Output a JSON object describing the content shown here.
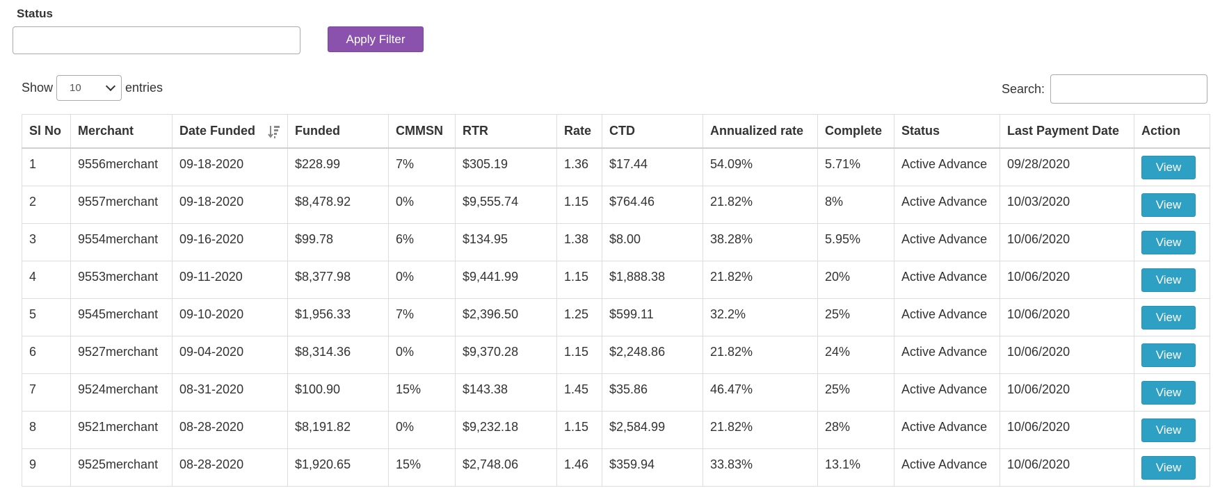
{
  "filter": {
    "status_label": "Status",
    "status_value": "",
    "apply_label": "Apply Filter"
  },
  "length": {
    "show_label": "Show",
    "selected": "10",
    "entries_label": "entries"
  },
  "search": {
    "label": "Search:",
    "value": ""
  },
  "table": {
    "columns": [
      "Sl No",
      "Merchant",
      "Date Funded",
      "Funded",
      "CMMSN",
      "RTR",
      "Rate",
      "CTD",
      "Annualized rate",
      "Complete",
      "Status",
      "Last Payment Date",
      "Action"
    ],
    "sorted_column": "Date Funded",
    "sort_direction": "descending",
    "rows": [
      {
        "sl": "1",
        "merchant": "9556merchant",
        "date": "09-18-2020",
        "funded": "$228.99",
        "cmmsn": "7%",
        "rtr": "$305.19",
        "rate": "1.36",
        "ctd": "$17.44",
        "annualized": "54.09%",
        "complete": "5.71%",
        "status": "Active Advance",
        "last_payment": "09/28/2020",
        "action": "View"
      },
      {
        "sl": "2",
        "merchant": "9557merchant",
        "date": "09-18-2020",
        "funded": "$8,478.92",
        "cmmsn": "0%",
        "rtr": "$9,555.74",
        "rate": "1.15",
        "ctd": "$764.46",
        "annualized": "21.82%",
        "complete": "8%",
        "status": "Active Advance",
        "last_payment": "10/03/2020",
        "action": "View"
      },
      {
        "sl": "3",
        "merchant": "9554merchant",
        "date": "09-16-2020",
        "funded": "$99.78",
        "cmmsn": "6%",
        "rtr": "$134.95",
        "rate": "1.38",
        "ctd": "$8.00",
        "annualized": "38.28%",
        "complete": "5.95%",
        "status": "Active Advance",
        "last_payment": "10/06/2020",
        "action": "View"
      },
      {
        "sl": "4",
        "merchant": "9553merchant",
        "date": "09-11-2020",
        "funded": "$8,377.98",
        "cmmsn": "0%",
        "rtr": "$9,441.99",
        "rate": "1.15",
        "ctd": "$1,888.38",
        "annualized": "21.82%",
        "complete": "20%",
        "status": "Active Advance",
        "last_payment": "10/06/2020",
        "action": "View"
      },
      {
        "sl": "5",
        "merchant": "9545merchant",
        "date": "09-10-2020",
        "funded": "$1,956.33",
        "cmmsn": "7%",
        "rtr": "$2,396.50",
        "rate": "1.25",
        "ctd": "$599.11",
        "annualized": "32.2%",
        "complete": "25%",
        "status": "Active Advance",
        "last_payment": "10/06/2020",
        "action": "View"
      },
      {
        "sl": "6",
        "merchant": "9527merchant",
        "date": "09-04-2020",
        "funded": "$8,314.36",
        "cmmsn": "0%",
        "rtr": "$9,370.28",
        "rate": "1.15",
        "ctd": "$2,248.86",
        "annualized": "21.82%",
        "complete": "24%",
        "status": "Active Advance",
        "last_payment": "10/06/2020",
        "action": "View"
      },
      {
        "sl": "7",
        "merchant": "9524merchant",
        "date": "08-31-2020",
        "funded": "$100.90",
        "cmmsn": "15%",
        "rtr": "$143.38",
        "rate": "1.45",
        "ctd": "$35.86",
        "annualized": "46.47%",
        "complete": "25%",
        "status": "Active Advance",
        "last_payment": "10/06/2020",
        "action": "View"
      },
      {
        "sl": "8",
        "merchant": "9521merchant",
        "date": "08-28-2020",
        "funded": "$8,191.82",
        "cmmsn": "0%",
        "rtr": "$9,232.18",
        "rate": "1.15",
        "ctd": "$2,584.99",
        "annualized": "21.82%",
        "complete": "28%",
        "status": "Active Advance",
        "last_payment": "10/06/2020",
        "action": "View"
      },
      {
        "sl": "9",
        "merchant": "9525merchant",
        "date": "08-28-2020",
        "funded": "$1,920.65",
        "cmmsn": "15%",
        "rtr": "$2,748.06",
        "rate": "1.46",
        "ctd": "$359.94",
        "annualized": "33.83%",
        "complete": "13.1%",
        "status": "Active Advance",
        "last_payment": "10/06/2020",
        "action": "View"
      }
    ]
  },
  "colors": {
    "apply_button": "#8a52ad",
    "view_button": "#2ea0c4"
  },
  "icons": {
    "sort": "sort-descending-icon",
    "select": "chevron-down-icon"
  }
}
